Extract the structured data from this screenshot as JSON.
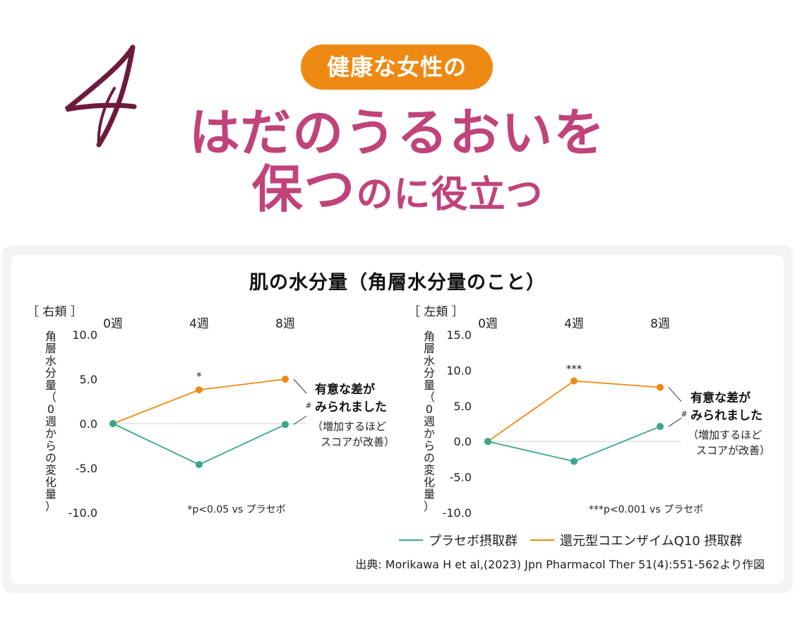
{
  "header": {
    "number": "4",
    "badge": "健康な女性の",
    "headline_line1": "はだのうるおいを",
    "headline_line2_big": "保つ",
    "headline_line2_small": "のに役立つ"
  },
  "colors": {
    "placebo": "#3aa78b",
    "coq10": "#ee8a13",
    "headline": "#c0437a",
    "numeral": "#6e1a3e"
  },
  "figure": {
    "title": "肌の水分量（角層水分量のこと）",
    "y_label_chars": [
      "角",
      "層",
      "水",
      "分",
      "量",
      "（",
      "0",
      "週",
      "か",
      "ら",
      "の",
      "変",
      "化",
      "量",
      "）"
    ],
    "significance_note_line1": "有意な差が",
    "significance_note_line2": "みられました",
    "improvement_note_line1": "（増加するほど",
    "improvement_note_line2": "スコアが改善）",
    "hash_mark": "#"
  },
  "legend": {
    "placebo": "プラセボ摂取群",
    "coq10": "還元型コエンザイムQ10 摂取群"
  },
  "source": "出典: Morikawa H et al,(2023) Jpn Pharmacol Ther 51(4):551-562より作図",
  "chart_data": [
    {
      "type": "line",
      "region_label": "［ 右頬 ］",
      "categories": [
        "0週",
        "4週",
        "8週"
      ],
      "ylim": [
        -10,
        10
      ],
      "yticks": [
        10,
        5,
        0,
        -5,
        -10
      ],
      "ytick_labels": [
        "10.0",
        "5.0",
        "0.0",
        "-5.0",
        "-10.0"
      ],
      "zero_line": true,
      "series": [
        {
          "name": "還元型コエンザイムQ10 摂取群",
          "key": "coq10",
          "values": [
            0,
            3.8,
            5.0
          ]
        },
        {
          "name": "プラセボ摂取群",
          "key": "placebo",
          "values": [
            0,
            -4.6,
            -0.1
          ]
        }
      ],
      "star_label": "*",
      "star_at": 1,
      "pvalue_note": "*p<0.05 vs プラセボ"
    },
    {
      "type": "line",
      "region_label": "［ 左頬 ］",
      "categories": [
        "0週",
        "4週",
        "8週"
      ],
      "ylim": [
        -10,
        15
      ],
      "yticks": [
        15,
        10,
        5,
        0,
        -5,
        -10
      ],
      "ytick_labels": [
        "15.0",
        "10.0",
        "5.0",
        "0.0",
        "-5.0",
        "-10.0"
      ],
      "zero_line": true,
      "series": [
        {
          "name": "還元型コエンザイムQ10 摂取群",
          "key": "coq10",
          "values": [
            0,
            8.5,
            7.6
          ]
        },
        {
          "name": "プラセボ摂取群",
          "key": "placebo",
          "values": [
            0,
            -2.8,
            2.1
          ]
        }
      ],
      "star_label": "***",
      "star_at": 1,
      "pvalue_note": "***p<0.001 vs プラセボ"
    }
  ]
}
